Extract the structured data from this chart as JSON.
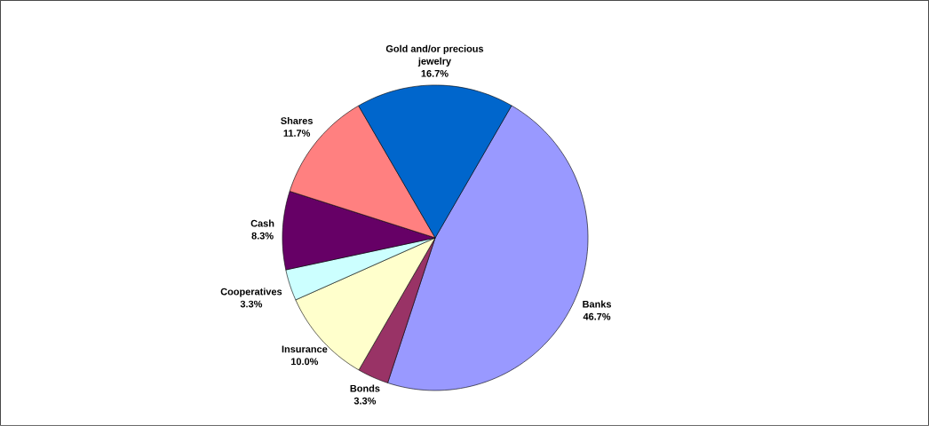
{
  "chart_data": {
    "type": "pie",
    "categories": [
      "Banks",
      "Bonds",
      "Insurance",
      "Cooperatives",
      "Cash",
      "Shares",
      "Gold and/or precious jewelry"
    ],
    "values": [
      46.7,
      3.3,
      10.0,
      3.3,
      8.3,
      11.7,
      16.7
    ],
    "value_labels": [
      "46.7%",
      "3.3%",
      "10.0%",
      "3.3%",
      "8.3%",
      "11.7%",
      "16.7%"
    ],
    "colors": [
      "#9999ff",
      "#993366",
      "#ffffcc",
      "#ccffff",
      "#660066",
      "#ff8080",
      "#0066cc"
    ]
  }
}
